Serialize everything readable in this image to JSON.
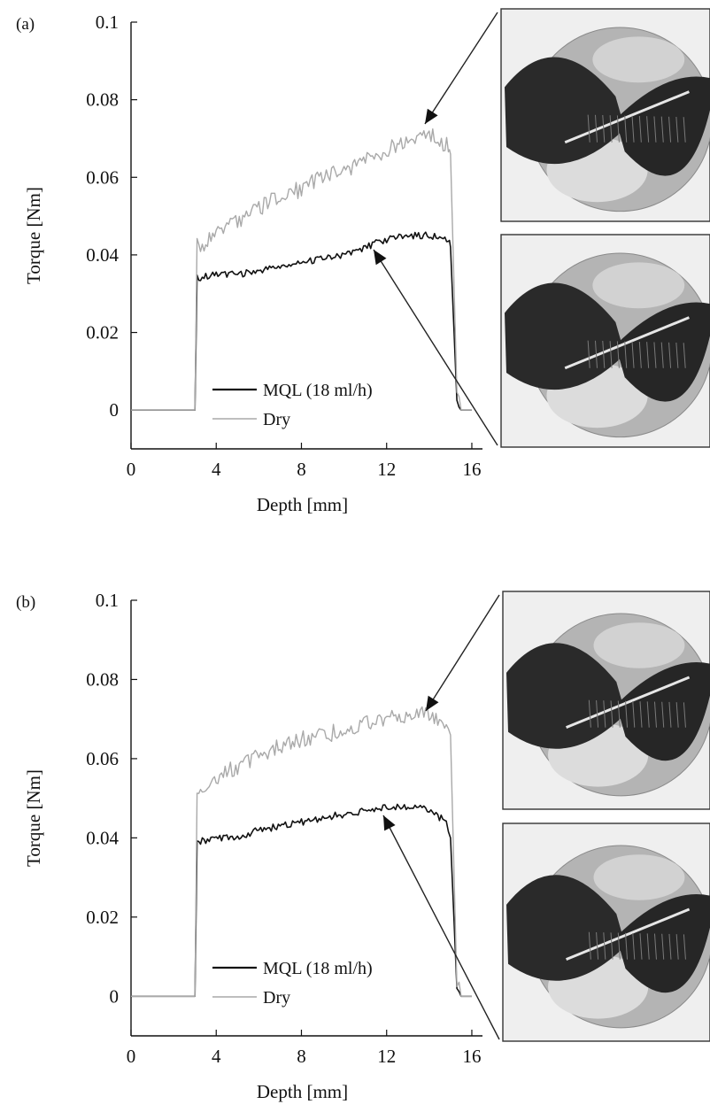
{
  "chart_data": [
    {
      "type": "line",
      "panel_label": "(a)",
      "xlabel": "Depth [mm]",
      "ylabel": "Torque [Nm]",
      "xlim": [
        0,
        16.5
      ],
      "ylim": [
        -0.01,
        0.1
      ],
      "x_ticks": [
        "0",
        "4",
        "8",
        "12",
        "16"
      ],
      "y_ticks": [
        "0",
        "0.02",
        "0.04",
        "0.06",
        "0.08",
        "0.1"
      ],
      "grid": false,
      "legend_position": "lower-center",
      "series": [
        {
          "name": "MQL (18 ml/h)",
          "color": "#111111",
          "x": [
            0,
            2,
            3,
            3.1,
            4,
            5,
            6,
            7,
            8,
            9,
            10,
            11,
            12,
            13,
            14,
            14.9,
            15,
            15.3,
            15.5,
            16
          ],
          "y": [
            0,
            0,
            0,
            0.034,
            0.035,
            0.035,
            0.036,
            0.037,
            0.038,
            0.039,
            0.04,
            0.042,
            0.044,
            0.045,
            0.045,
            0.044,
            0.042,
            0.002,
            0,
            0
          ]
        },
        {
          "name": "Dry",
          "color": "#a9a9a9",
          "x": [
            0,
            2,
            3,
            3.1,
            4,
            5,
            6,
            7,
            8,
            9,
            10,
            11,
            12,
            13,
            14,
            14.9,
            15,
            15.3,
            15.5,
            16
          ],
          "y": [
            0,
            0,
            0,
            0.042,
            0.045,
            0.049,
            0.052,
            0.055,
            0.057,
            0.06,
            0.062,
            0.064,
            0.067,
            0.07,
            0.071,
            0.068,
            0.066,
            0.004,
            0,
            0
          ]
        }
      ],
      "photos": [
        "drill-tip-photo-dry",
        "drill-tip-photo-mql"
      ]
    },
    {
      "type": "line",
      "panel_label": "(b)",
      "xlabel": "Depth [mm]",
      "ylabel": "Torque [Nm]",
      "xlim": [
        0,
        16.5
      ],
      "ylim": [
        -0.01,
        0.1
      ],
      "x_ticks": [
        "0",
        "4",
        "8",
        "12",
        "16"
      ],
      "y_ticks": [
        "0",
        "0.02",
        "0.04",
        "0.06",
        "0.08",
        "0.1"
      ],
      "grid": false,
      "legend_position": "lower-center",
      "series": [
        {
          "name": "MQL (18 ml/h)",
          "color": "#111111",
          "x": [
            0,
            2,
            3,
            3.1,
            4,
            5,
            6,
            7,
            8,
            9,
            10,
            11,
            12,
            13,
            14,
            14.8,
            15,
            15.3,
            15.5,
            16
          ],
          "y": [
            0,
            0,
            0,
            0.039,
            0.04,
            0.04,
            0.042,
            0.043,
            0.044,
            0.045,
            0.046,
            0.047,
            0.048,
            0.048,
            0.047,
            0.044,
            0.04,
            0.002,
            0,
            0
          ]
        },
        {
          "name": "Dry",
          "color": "#a9a9a9",
          "x": [
            0,
            2,
            3,
            3.1,
            4,
            5,
            6,
            7,
            8,
            9,
            10,
            11,
            12,
            13,
            14,
            14.8,
            15,
            15.3,
            15.5,
            16
          ],
          "y": [
            0,
            0,
            0,
            0.053,
            0.055,
            0.058,
            0.061,
            0.063,
            0.065,
            0.066,
            0.067,
            0.069,
            0.07,
            0.071,
            0.071,
            0.069,
            0.066,
            0.004,
            0,
            0
          ]
        }
      ],
      "photos": [
        "drill-tip-photo-dry",
        "drill-tip-photo-mql"
      ]
    }
  ]
}
